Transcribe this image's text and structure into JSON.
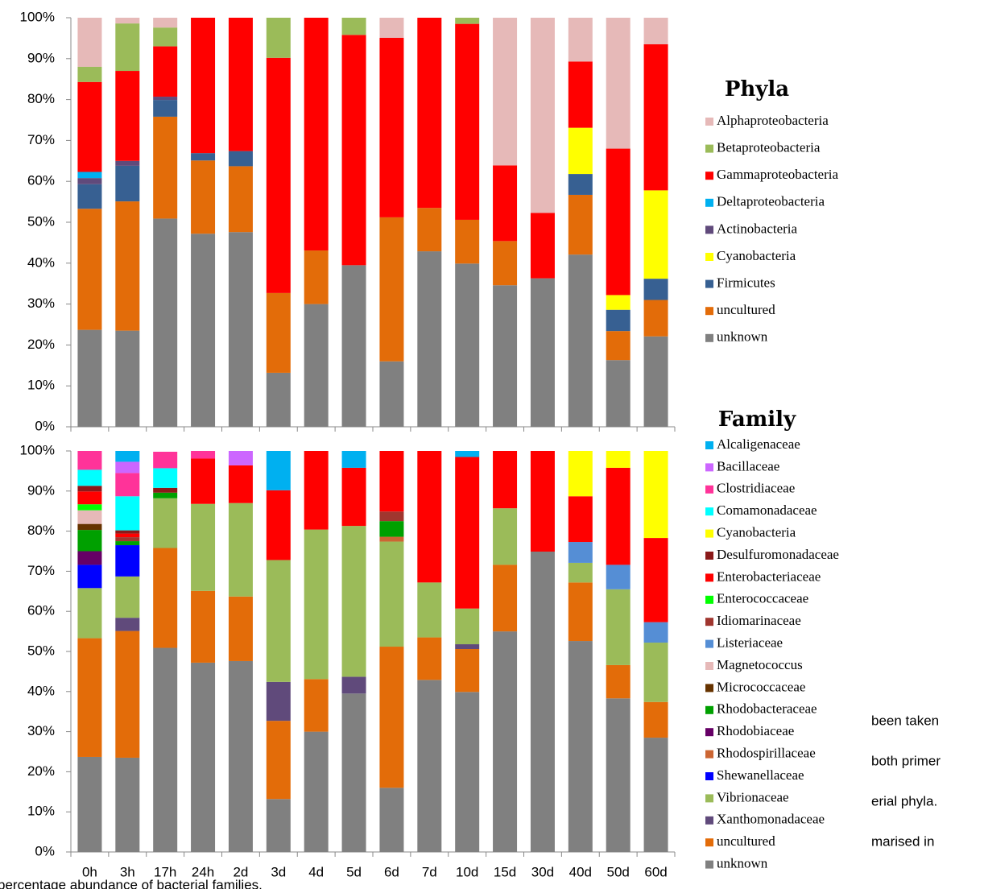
{
  "chart_data": [
    {
      "type": "bar",
      "stacked": true,
      "legend_title": "Phyla",
      "categories": [
        null,
        null,
        null,
        null,
        null,
        null,
        null,
        null,
        null,
        null,
        null,
        null,
        null,
        null,
        null,
        null
      ],
      "ylim": [
        0,
        100
      ],
      "yticks": [
        {
          "value": 0,
          "label": "0%"
        },
        {
          "value": 10,
          "label": "10%"
        },
        {
          "value": 20,
          "label": "20%"
        },
        {
          "value": 30,
          "label": "30%"
        },
        {
          "value": 40,
          "label": "40%"
        },
        {
          "value": 50,
          "label": "50%"
        },
        {
          "value": 60,
          "label": "60%"
        },
        {
          "value": 70,
          "label": "70%"
        },
        {
          "value": 80,
          "label": "80%"
        },
        {
          "value": 90,
          "label": "90%"
        },
        {
          "value": 100,
          "label": "100%"
        }
      ],
      "series": [
        {
          "name": "Alphaproteobacteria",
          "color": "#e6b9b8",
          "values": [
            12,
            1.4,
            2.4,
            0,
            0,
            0,
            0,
            0,
            4.9,
            0,
            0,
            36.1,
            47.7,
            10.7,
            32,
            6.5
          ]
        },
        {
          "name": "Betaproteobacteria",
          "color": "#9bbb59",
          "values": [
            3.7,
            11.6,
            4.6,
            0,
            0,
            9.8,
            0,
            4.2,
            0,
            0,
            1.5,
            0,
            0,
            0,
            0,
            0
          ]
        },
        {
          "name": "Gammaproteobacteria",
          "color": "#ff0000",
          "values": [
            22,
            22,
            12.3,
            33.1,
            32.6,
            57.5,
            56.9,
            56.3,
            43.9,
            46.5,
            47.9,
            18.5,
            16,
            16.2,
            35.8,
            35.7
          ]
        },
        {
          "name": "Deltaproteobacteria",
          "color": "#00b0f0",
          "values": [
            1.5,
            0,
            0,
            0,
            0,
            0,
            0,
            0,
            0,
            0,
            0,
            0,
            0,
            0,
            0,
            0
          ]
        },
        {
          "name": "Actinobacteria",
          "color": "#604a7b",
          "values": [
            1.5,
            1.2,
            0.8,
            0,
            0,
            0,
            0,
            0,
            0,
            0,
            0,
            0,
            0,
            0,
            0,
            0
          ]
        },
        {
          "name": "Cyanobacteria",
          "color": "#ffff00",
          "values": [
            0,
            0,
            0,
            0,
            0,
            0,
            0,
            0,
            0,
            0,
            0,
            0,
            0,
            11.3,
            3.6,
            21.6
          ]
        },
        {
          "name": "Firmicutes",
          "color": "#376092",
          "values": [
            6,
            8.7,
            4.1,
            1.8,
            3.7,
            0,
            0,
            0,
            0,
            0,
            0,
            0,
            0,
            5.1,
            5.2,
            5.2
          ]
        },
        {
          "name": "uncultured",
          "color": "#e36c09",
          "values": [
            29.6,
            31.6,
            24.9,
            17.9,
            16.1,
            19.5,
            13.1,
            0,
            35.2,
            10.6,
            10.7,
            10.8,
            0,
            14.6,
            7.1,
            8.9
          ]
        },
        {
          "name": "unknown",
          "color": "#808080",
          "values": [
            23.7,
            23.5,
            50.9,
            47.2,
            47.6,
            13.2,
            30,
            39.5,
            16,
            42.9,
            39.9,
            34.6,
            36.3,
            42.1,
            16.3,
            22.1
          ]
        }
      ]
    },
    {
      "type": "bar",
      "stacked": true,
      "legend_title": "Family",
      "categories": [
        "0h",
        "3h",
        "17h",
        "24h",
        "2d",
        "3d",
        "4d",
        "5d",
        "6d",
        "7d",
        "10d",
        "15d",
        "30d",
        "40d",
        "50d",
        "60d"
      ],
      "ylim": [
        0,
        100
      ],
      "yticks": [
        {
          "value": 0,
          "label": "0%"
        },
        {
          "value": 10,
          "label": "10%"
        },
        {
          "value": 20,
          "label": "20%"
        },
        {
          "value": 30,
          "label": "30%"
        },
        {
          "value": 40,
          "label": "40%"
        },
        {
          "value": 50,
          "label": "50%"
        },
        {
          "value": 60,
          "label": "60%"
        },
        {
          "value": 70,
          "label": "70%"
        },
        {
          "value": 80,
          "label": "80%"
        },
        {
          "value": 90,
          "label": "90%"
        },
        {
          "value": 100,
          "label": "100%"
        }
      ],
      "series": [
        {
          "name": "Alcaligenaceae",
          "color": "#00b0f0",
          "values": [
            0,
            2.7,
            0,
            0,
            0,
            9.8,
            0,
            4.2,
            0,
            0,
            1.5,
            0,
            0,
            0,
            0,
            0
          ]
        },
        {
          "name": "Bacillaceae",
          "color": "#cc66ff",
          "values": [
            0,
            2.8,
            0,
            0,
            3.6,
            0,
            0,
            0,
            0,
            0,
            0,
            0,
            0,
            0,
            0,
            0
          ]
        },
        {
          "name": "Clostridiaceae",
          "color": "#ff3399",
          "values": [
            4.7,
            5.8,
            4.1,
            1.9,
            0,
            0,
            0,
            0,
            0,
            0,
            0,
            0,
            0,
            0,
            0,
            0
          ]
        },
        {
          "name": "Comamonadaceae",
          "color": "#00ffff",
          "values": [
            4,
            8.5,
            4.9,
            0,
            0,
            0,
            0,
            0,
            0,
            0,
            0,
            0,
            0,
            0,
            0,
            0
          ]
        },
        {
          "name": "Cyanobacteria",
          "color": "#ffff00",
          "values": [
            0,
            0,
            0,
            0,
            0,
            0,
            0,
            0,
            0,
            0,
            0,
            0,
            0,
            11.3,
            4.2,
            21.7
          ]
        },
        {
          "name": "Desulfuromonadaceae",
          "color": "#8b1a1a",
          "values": [
            1.4,
            0.8,
            1.2,
            0,
            0,
            0,
            0,
            0,
            0,
            0,
            0,
            0,
            0,
            0,
            0,
            0
          ]
        },
        {
          "name": "Enterobacteriaceae",
          "color": "#ff0000",
          "values": [
            3.2,
            0.9,
            0,
            11.3,
            9.4,
            17.4,
            19.6,
            14.5,
            15.1,
            32.8,
            37.8,
            14.3,
            25.1,
            11.4,
            24.2,
            21
          ]
        },
        {
          "name": "Enterococcaceae",
          "color": "#00ff00",
          "values": [
            1.5,
            0,
            0,
            0,
            0,
            0,
            0,
            0,
            0,
            0,
            0,
            0,
            0,
            0,
            0,
            0
          ]
        },
        {
          "name": "Idiomarinaceae",
          "color": "#a0362f",
          "values": [
            0,
            1,
            0,
            0,
            0,
            0,
            0,
            0,
            2.4,
            0,
            0,
            0,
            0,
            0,
            0,
            0
          ]
        },
        {
          "name": "Listeriaceae",
          "color": "#558ed5",
          "values": [
            0,
            0,
            0,
            0,
            0,
            0,
            0,
            0,
            0,
            0,
            0,
            0,
            0,
            5.2,
            6.1,
            5.1
          ]
        },
        {
          "name": "Magnetococcus",
          "color": "#e6b9b8",
          "values": [
            3.4,
            0,
            0,
            0,
            0,
            0,
            0,
            0,
            0,
            0,
            0,
            0,
            0,
            0,
            0,
            0
          ]
        },
        {
          "name": "Micrococcaceae",
          "color": "#663300",
          "values": [
            1.5,
            0,
            0,
            0,
            0,
            0,
            0,
            0,
            0,
            0,
            0,
            0,
            0,
            0,
            0,
            0
          ]
        },
        {
          "name": "Rhodobacteraceae",
          "color": "#00a000",
          "values": [
            5.3,
            1,
            1.4,
            0,
            0,
            0,
            0,
            0,
            3.9,
            0,
            0,
            0,
            0,
            0,
            0,
            0
          ]
        },
        {
          "name": "Rhodobiaceae",
          "color": "#660066",
          "values": [
            3.4,
            0,
            0,
            0,
            0,
            0,
            0,
            0,
            0,
            0,
            0,
            0,
            0,
            0,
            0,
            0
          ]
        },
        {
          "name": "Rhodospirillaceae",
          "color": "#cc6633",
          "values": [
            0,
            0,
            0,
            0,
            0,
            0,
            0,
            0,
            1.2,
            0,
            0,
            0,
            0,
            0,
            0,
            0
          ]
        },
        {
          "name": "Shewanellaceae",
          "color": "#0000ff",
          "values": [
            5.8,
            7.8,
            0,
            0,
            0,
            0,
            0,
            0,
            0,
            0,
            0,
            0,
            0,
            0,
            0,
            0
          ]
        },
        {
          "name": "Vibrionaceae",
          "color": "#9bbb59",
          "values": [
            12.5,
            10.3,
            12.4,
            21.7,
            23.3,
            30.4,
            37.3,
            37.6,
            26.2,
            13.7,
            8.9,
            14.1,
            0,
            4.9,
            18.9,
            14.8
          ]
        },
        {
          "name": "Xanthomonadaceae",
          "color": "#604a7b",
          "values": [
            0,
            3.3,
            0,
            0,
            0,
            9.7,
            0,
            4.2,
            0,
            0,
            1.2,
            0,
            0,
            0,
            0,
            0
          ]
        },
        {
          "name": "uncultured",
          "color": "#e36c09",
          "values": [
            29.6,
            31.6,
            24.9,
            17.9,
            16.1,
            19.5,
            13.1,
            0,
            35.2,
            10.6,
            10.7,
            16.6,
            0,
            14.6,
            8.3,
            8.9
          ]
        },
        {
          "name": "unknown",
          "color": "#808080",
          "values": [
            23.7,
            23.5,
            50.9,
            47.2,
            47.6,
            13.2,
            30,
            39.5,
            16,
            42.9,
            39.9,
            55,
            74.9,
            52.6,
            38.3,
            28.5
          ]
        }
      ]
    }
  ],
  "document_fragments": [
    "been taken",
    "both primer",
    "erial phyla.",
    "marised in",
    "percentage abundance of bacterial families."
  ]
}
